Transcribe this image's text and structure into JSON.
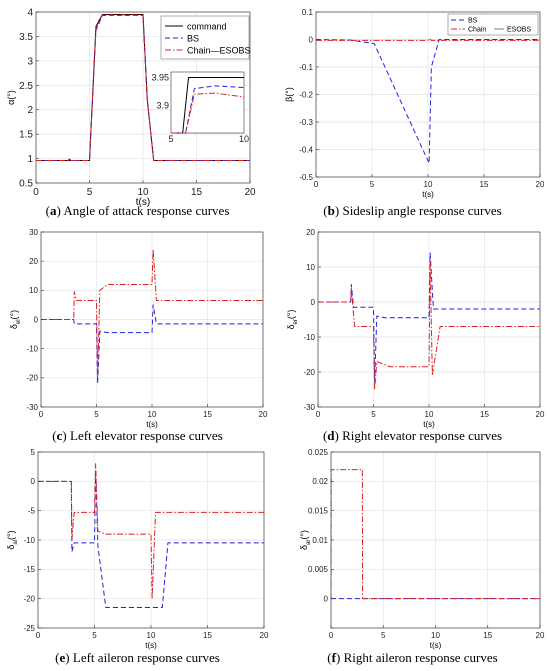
{
  "chart_data": [
    {
      "id": "a",
      "type": "line",
      "caption_letter": "a",
      "caption_text": "Angle of attack response curves",
      "xlabel": "t(s)",
      "ylabel": "α(°)",
      "xlim": [
        0,
        20
      ],
      "ylim": [
        0.5,
        4
      ],
      "xticks": [
        0,
        5,
        10,
        15,
        20
      ],
      "yticks": [
        0.5,
        1,
        1.5,
        2,
        2.5,
        3,
        3.5,
        4
      ],
      "ytick_labels": [
        "0.5",
        "1",
        "1.5",
        "2",
        "2.5",
        "3",
        "3.5",
        "4"
      ],
      "grid": true,
      "legend": "top-right",
      "series": [
        {
          "name": "command",
          "color": "#000000",
          "dash": "solid",
          "x": [
            0,
            5.0,
            5.6,
            6.2,
            10.0,
            10.4,
            11.0,
            20
          ],
          "y": [
            0.96,
            0.96,
            3.7,
            3.95,
            3.95,
            2.2,
            0.96,
            0.96
          ]
        },
        {
          "name": "BS",
          "color": "#2323e6",
          "dash": "dash",
          "x": [
            0,
            3.0,
            3.1,
            3.3,
            5.0,
            5.6,
            6.2,
            10.0,
            10.4,
            11.0,
            20
          ],
          "y": [
            0.96,
            0.96,
            0.99,
            0.96,
            0.96,
            3.62,
            3.93,
            3.93,
            2.2,
            0.96,
            0.96
          ]
        },
        {
          "name": "Chain—ESOBS",
          "color": "#e02020",
          "dash": "dashdot",
          "x": [
            0,
            5.0,
            5.6,
            6.2,
            10.0,
            10.4,
            11.0,
            20
          ],
          "y": [
            0.96,
            0.96,
            3.66,
            3.94,
            3.94,
            2.2,
            0.96,
            0.96
          ]
        }
      ],
      "inset": {
        "xlim": [
          5,
          10
        ],
        "ylim": [
          3.85,
          3.96
        ],
        "xticks": [
          5,
          10
        ],
        "yticks": [
          3.9,
          3.95
        ],
        "ytick_labels": [
          "3.9",
          "3.95"
        ],
        "series": [
          {
            "x": [
              5,
              5.8,
              6.2,
              10
            ],
            "y": [
              3.85,
              3.85,
              3.95,
              3.95
            ]
          },
          {
            "x": [
              5,
              6.0,
              6.6,
              8,
              10
            ],
            "y": [
              3.85,
              3.85,
              3.93,
              3.935,
              3.932
            ]
          },
          {
            "x": [
              5,
              6.0,
              6.6,
              8,
              10
            ],
            "y": [
              3.85,
              3.85,
              3.92,
              3.922,
              3.915
            ]
          }
        ]
      }
    },
    {
      "id": "b",
      "type": "line",
      "caption_letter": "b",
      "caption_text": "Sideslip angle response curves",
      "xlabel": "t(s)",
      "ylabel": "β(°)",
      "xlim": [
        0,
        20
      ],
      "ylim": [
        -0.5,
        0.1
      ],
      "xticks": [
        0,
        5,
        10,
        15,
        20
      ],
      "yticks": [
        -0.5,
        -0.4,
        -0.3,
        -0.2,
        -0.1,
        0,
        0.1
      ],
      "ytick_labels": [
        "-0.5",
        "-0.4",
        "-0.3",
        "-0.2",
        "-0.1",
        "0",
        "0.1"
      ],
      "grid": true,
      "legend": "top-right",
      "legend_names": [
        "BS",
        "Chain",
        "ESOBS"
      ],
      "series": [
        {
          "name": "BS",
          "color": "#2323e6",
          "dash": "dash",
          "x": [
            0,
            3,
            5.2,
            10.1,
            10.3,
            11.0,
            20
          ],
          "y": [
            0,
            -0.002,
            -0.015,
            -0.45,
            -0.1,
            0,
            0
          ]
        },
        {
          "name": "Chain—ESOBS",
          "color": "#e02020",
          "dash": "dashdot",
          "x": [
            0,
            10.0,
            10.1,
            10.3,
            20
          ],
          "y": [
            -0.003,
            -0.003,
            0.004,
            -0.003,
            -0.003
          ]
        }
      ]
    },
    {
      "id": "c",
      "type": "line",
      "caption_letter": "c",
      "caption_text": "Left elevator response curves",
      "xlabel": "t(s)",
      "ylabel": "δ_el(°)",
      "xlim": [
        0,
        20
      ],
      "ylim": [
        -30,
        30
      ],
      "xticks": [
        0,
        5,
        10,
        15,
        20
      ],
      "yticks": [
        -30,
        -20,
        -10,
        0,
        10,
        20,
        30
      ],
      "ytick_labels": [
        "-30",
        "-20",
        "-10",
        "0",
        "10",
        "20",
        "30"
      ],
      "grid": true,
      "legend": "none",
      "series": [
        {
          "name": "BS",
          "color": "#2323e6",
          "dash": "dash",
          "x": [
            0,
            2.95,
            3.0,
            3.3,
            5.0,
            5.1,
            5.3,
            6.0,
            10.0,
            10.1,
            10.4,
            11.5,
            20
          ],
          "y": [
            0,
            0,
            -1.5,
            -1.5,
            -1.5,
            -22,
            -4,
            -4.5,
            -4.5,
            5,
            -1.5,
            -1.5,
            -1.5
          ]
        },
        {
          "name": "Chain—ESOBS",
          "color": "#e02020",
          "dash": "dashdot",
          "x": [
            0,
            2.95,
            3.0,
            3.2,
            5.0,
            5.1,
            5.3,
            6.0,
            10.0,
            10.1,
            10.4,
            11.0,
            20
          ],
          "y": [
            0,
            0,
            9.5,
            6.5,
            6.5,
            -20,
            10,
            12,
            12,
            24,
            6.5,
            6.5,
            6.5
          ]
        }
      ]
    },
    {
      "id": "d",
      "type": "line",
      "caption_letter": "d",
      "caption_text": "Right elevator response curves",
      "xlabel": "t(s)",
      "ylabel": "δ_er(°)",
      "xlim": [
        0,
        20
      ],
      "ylim": [
        -30,
        20
      ],
      "xticks": [
        0,
        5,
        10,
        15,
        20
      ],
      "yticks": [
        -30,
        -20,
        -10,
        0,
        10,
        20
      ],
      "ytick_labels": [
        "-30",
        "-20",
        "-10",
        "0",
        "10",
        "20"
      ],
      "grid": true,
      "legend": "none",
      "series": [
        {
          "name": "BS",
          "color": "#2323e6",
          "dash": "dash",
          "x": [
            0,
            2.95,
            3.0,
            3.2,
            5.0,
            5.1,
            5.3,
            6.0,
            10.0,
            10.1,
            10.4,
            11.5,
            20
          ],
          "y": [
            0,
            0,
            5,
            -1.5,
            -1.5,
            -23,
            -4,
            -4.5,
            -4.5,
            14,
            -2,
            -2,
            -2
          ]
        },
        {
          "name": "Chain—ESOBS",
          "color": "#e02020",
          "dash": "dashdot",
          "x": [
            0,
            2.95,
            3.0,
            3.3,
            5.0,
            5.1,
            5.3,
            6.5,
            10.0,
            10.1,
            10.3,
            11.0,
            20
          ],
          "y": [
            0,
            0,
            4,
            -7,
            -7,
            -25,
            -17,
            -18.5,
            -18.5,
            12,
            -21,
            -7,
            -7
          ]
        }
      ]
    },
    {
      "id": "e",
      "type": "line",
      "caption_letter": "e",
      "caption_text": "Left aileron response curves",
      "xlabel": "t(s)",
      "ylabel": "δ_al(°)",
      "xlim": [
        0,
        20
      ],
      "ylim": [
        -25,
        5
      ],
      "xticks": [
        0,
        5,
        10,
        15,
        20
      ],
      "yticks": [
        -25,
        -20,
        -15,
        -10,
        -5,
        0,
        5
      ],
      "ytick_labels": [
        "-25",
        "-20",
        "-15",
        "-10",
        "-5",
        "0",
        "5"
      ],
      "grid": true,
      "legend": "none",
      "series": [
        {
          "name": "BS",
          "color": "#2323e6",
          "dash": "dash",
          "x": [
            0,
            2.95,
            3.0,
            3.2,
            5.0,
            5.1,
            5.3,
            6.0,
            11.0,
            11.5,
            20
          ],
          "y": [
            0,
            0,
            -12,
            -10.5,
            -10.5,
            2,
            -11,
            -21.5,
            -21.5,
            -10.5,
            -10.5
          ]
        },
        {
          "name": "Chain—ESOBS",
          "color": "#e02020",
          "dash": "dashdot",
          "x": [
            0,
            2.95,
            3.0,
            3.2,
            5.0,
            5.1,
            5.3,
            6.0,
            10.0,
            10.1,
            10.4,
            11.0,
            20
          ],
          "y": [
            0,
            0,
            -10,
            -5.3,
            -5.3,
            3,
            -8.5,
            -9,
            -9,
            -20,
            -5.3,
            -5.3,
            -5.3
          ]
        }
      ]
    },
    {
      "id": "f",
      "type": "line",
      "caption_letter": "f",
      "caption_text": "Right aileron response curves",
      "xlabel": "t(s)",
      "ylabel": "δ_ar(°)",
      "xlim": [
        0,
        20
      ],
      "ylim": [
        -0.005,
        0.025
      ],
      "xticks": [
        0,
        5,
        10,
        15,
        20
      ],
      "yticks": [
        -0.005,
        0,
        0.005,
        0.01,
        0.015,
        0.02,
        0.025
      ],
      "ytick_labels": [
        "",
        "0",
        "0.005",
        "0.01",
        "0.015",
        "0.02",
        "0.025"
      ],
      "grid": true,
      "legend": "none",
      "series": [
        {
          "name": "BS",
          "color": "#2323e6",
          "dash": "dash",
          "x": [
            0,
            20
          ],
          "y": [
            0,
            0
          ]
        },
        {
          "name": "Chain—ESOBS",
          "color": "#e02020",
          "dash": "dashdot",
          "x": [
            0,
            0.02,
            3.0,
            3.02,
            20
          ],
          "y": [
            0,
            0.022,
            0.022,
            0,
            0
          ]
        }
      ]
    }
  ]
}
